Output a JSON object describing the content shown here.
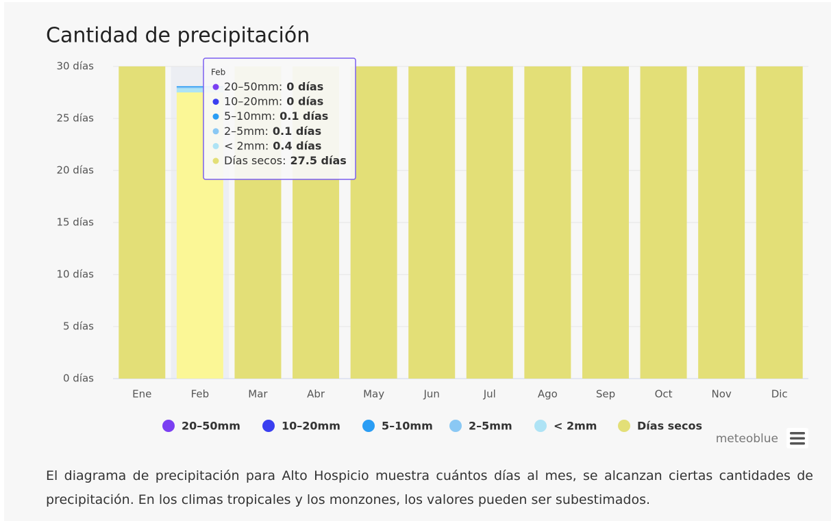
{
  "chart_data": {
    "type": "stacked_bar",
    "title": "Cantidad de precipitación",
    "categories": [
      "Ene",
      "Feb",
      "Mar",
      "Abr",
      "May",
      "Jun",
      "Jul",
      "Ago",
      "Sep",
      "Oct",
      "Nov",
      "Dic"
    ],
    "series": [
      {
        "name": "20–50mm",
        "color": "#7b3ff2",
        "values": [
          0,
          0,
          0,
          0,
          0,
          0,
          0,
          0,
          0,
          0,
          0,
          0
        ]
      },
      {
        "name": "10–20mm",
        "color": "#3a3ff0",
        "values": [
          0,
          0,
          0,
          0,
          0,
          0,
          0,
          0,
          0,
          0,
          0,
          0
        ]
      },
      {
        "name": "5–10mm",
        "color": "#2a9df4",
        "values": [
          0,
          0.1,
          0,
          0,
          0,
          0,
          0,
          0,
          0,
          0,
          0,
          0
        ]
      },
      {
        "name": "2–5mm",
        "color": "#8ac8f4",
        "values": [
          0,
          0.1,
          0,
          0,
          0,
          0,
          0,
          0,
          0,
          0,
          0,
          0
        ]
      },
      {
        "name": "< 2mm",
        "color": "#aee3f5",
        "values": [
          0,
          0.4,
          0,
          0,
          0,
          0,
          0,
          0,
          0,
          0,
          0,
          0
        ]
      },
      {
        "name": "Días secos",
        "color": "#e3df77",
        "values": [
          30,
          27.5,
          30,
          30,
          30,
          30,
          30,
          30,
          30,
          30,
          30,
          30
        ]
      }
    ],
    "ylim": [
      0,
      30
    ],
    "yticks": [
      {
        "value": 0,
        "label": "0 días"
      },
      {
        "value": 5,
        "label": "5 días"
      },
      {
        "value": 10,
        "label": "10 días"
      },
      {
        "value": 15,
        "label": "15 días"
      },
      {
        "value": 20,
        "label": "20 días"
      },
      {
        "value": 25,
        "label": "25 días"
      },
      {
        "value": 30,
        "label": "30 días"
      }
    ],
    "grid": true,
    "legend": "bottom",
    "hover_index": 1,
    "tooltip": {
      "labels": [
        "20–50mm:",
        "10–20mm:",
        "5–10mm:",
        "2–5mm:",
        "< 2mm:",
        "Días secos:"
      ],
      "value_labels": [
        "0 días",
        "0 días",
        "0.1 días",
        "0.1 días",
        "0.4 días",
        "27.5 días"
      ]
    }
  },
  "branding": "meteoblue",
  "description": "El diagrama de precipitación para Alto Hospicio muestra cuántos días al mes, se alcanzan ciertas cantidades de precipitación. En los climas tropicales y los monzones, los valores pueden ser subestimados."
}
